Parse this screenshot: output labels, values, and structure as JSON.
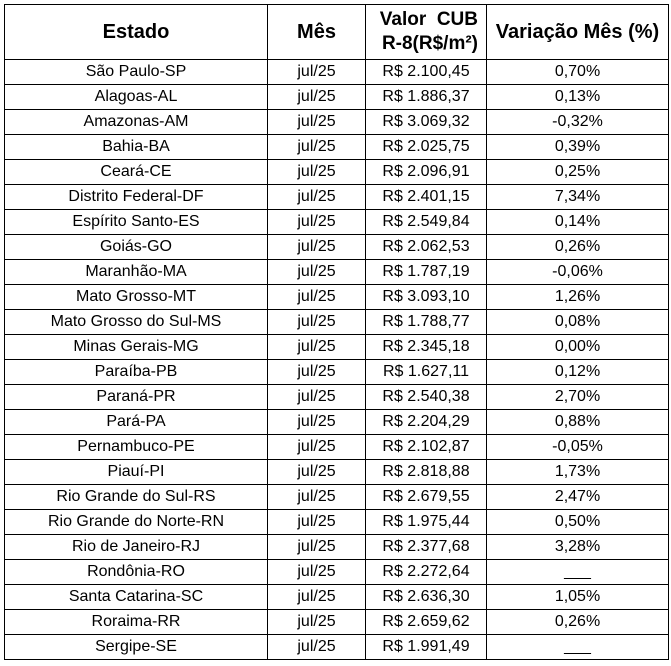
{
  "table": {
    "headers": {
      "estado": "Estado",
      "mes": "Mês",
      "valor_line1": "Valor  CUB",
      "valor_line2": "R-8(R$/m²)",
      "variacao": "Variação Mês (%)"
    },
    "rows": [
      {
        "estado": "São Paulo-SP",
        "mes": "jul/25",
        "valor": "R$ 2.100,45",
        "variacao": "0,70%"
      },
      {
        "estado": "Alagoas-AL",
        "mes": "jul/25",
        "valor": "R$ 1.886,37",
        "variacao": "0,13%"
      },
      {
        "estado": "Amazonas-AM",
        "mes": "jul/25",
        "valor": "R$ 3.069,32",
        "variacao": "-0,32%"
      },
      {
        "estado": "Bahia-BA",
        "mes": "jul/25",
        "valor": "R$ 2.025,75",
        "variacao": "0,39%"
      },
      {
        "estado": "Ceará-CE",
        "mes": "jul/25",
        "valor": "R$ 2.096,91",
        "variacao": "0,25%"
      },
      {
        "estado": "Distrito Federal-DF",
        "mes": "jul/25",
        "valor": "R$ 2.401,15",
        "variacao": "7,34%"
      },
      {
        "estado": "Espírito Santo-ES",
        "mes": "jul/25",
        "valor": "R$ 2.549,84",
        "variacao": "0,14%"
      },
      {
        "estado": "Goiás-GO",
        "mes": "jul/25",
        "valor": "R$ 2.062,53",
        "variacao": "0,26%"
      },
      {
        "estado": "Maranhão-MA",
        "mes": "jul/25",
        "valor": "R$ 1.787,19",
        "variacao": "-0,06%"
      },
      {
        "estado": "Mato Grosso-MT",
        "mes": "jul/25",
        "valor": "R$ 3.093,10",
        "variacao": "1,26%"
      },
      {
        "estado": "Mato Grosso do Sul-MS",
        "mes": "jul/25",
        "valor": "R$ 1.788,77",
        "variacao": "0,08%"
      },
      {
        "estado": "Minas Gerais-MG",
        "mes": "jul/25",
        "valor": "R$ 2.345,18",
        "variacao": "0,00%"
      },
      {
        "estado": "Paraíba-PB",
        "mes": "jul/25",
        "valor": "R$ 1.627,11",
        "variacao": "0,12%"
      },
      {
        "estado": "Paraná-PR",
        "mes": "jul/25",
        "valor": "R$ 2.540,38",
        "variacao": "2,70%"
      },
      {
        "estado": "Pará-PA",
        "mes": "jul/25",
        "valor": "R$ 2.204,29",
        "variacao": "0,88%"
      },
      {
        "estado": "Pernambuco-PE",
        "mes": "jul/25",
        "valor": "R$ 2.102,87",
        "variacao": "-0,05%"
      },
      {
        "estado": "Piauí-PI",
        "mes": "jul/25",
        "valor": "R$ 2.818,88",
        "variacao": "1,73%"
      },
      {
        "estado": "Rio Grande do Sul-RS",
        "mes": "jul/25",
        "valor": "R$ 2.679,55",
        "variacao": "2,47%"
      },
      {
        "estado": "Rio Grande do Norte-RN",
        "mes": "jul/25",
        "valor": "R$ 1.975,44",
        "variacao": "0,50%"
      },
      {
        "estado": "Rio de Janeiro-RJ",
        "mes": "jul/25",
        "valor": "R$ 2.377,68",
        "variacao": "3,28%"
      },
      {
        "estado": "Rondônia-RO",
        "mes": "jul/25",
        "valor": "R$ 2.272,64",
        "variacao": "___"
      },
      {
        "estado": "Santa Catarina-SC",
        "mes": "jul/25",
        "valor": "R$ 2.636,30",
        "variacao": "1,05%"
      },
      {
        "estado": "Roraima-RR",
        "mes": "jul/25",
        "valor": "R$ 2.659,62",
        "variacao": "0,26%"
      },
      {
        "estado": "Sergipe-SE",
        "mes": "jul/25",
        "valor": "R$ 1.991,49",
        "variacao": "___"
      }
    ]
  }
}
